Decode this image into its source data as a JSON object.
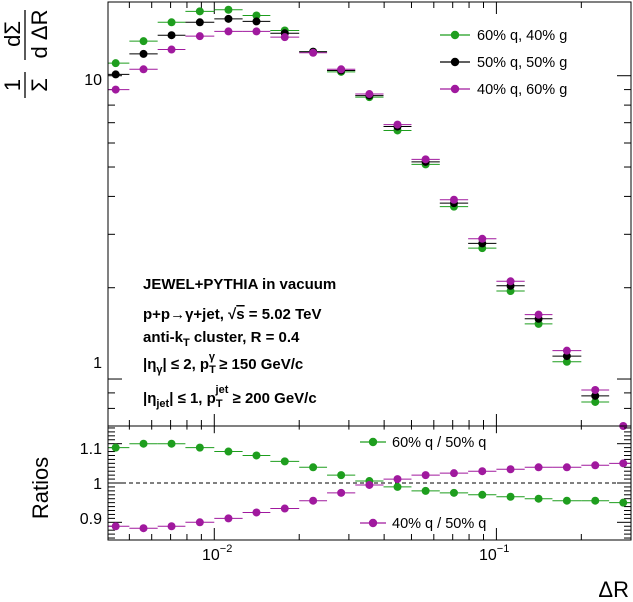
{
  "chart_data": [
    {
      "type": "scatter",
      "panel": "main",
      "x_scale": "log",
      "y_scale": "log",
      "xlim": [
        0.0042,
        0.3
      ],
      "ylim": [
        0.7,
        17.5
      ],
      "ylabel": {
        "fraction_numerator": "1",
        "fraction_denominator": "Σ",
        "deriv_numerator": "dΣ",
        "deriv_denominator": "d ΔR"
      },
      "y_ticks": [
        {
          "value": 1,
          "label": "1"
        },
        {
          "value": 10,
          "label": "10"
        }
      ],
      "x_bin_edges": [
        0.004,
        0.005,
        0.0063,
        0.0079,
        0.01,
        0.0126,
        0.0158,
        0.02,
        0.0251,
        0.0316,
        0.0398,
        0.05,
        0.063,
        0.0794,
        0.1,
        0.126,
        0.158,
        0.2,
        0.251,
        0.316
      ],
      "series": [
        {
          "name": "60% q, 40% g",
          "color": "#1e9e1e",
          "values": [
            11.0,
            13.0,
            15.0,
            16.3,
            16.5,
            15.8,
            14.1,
            12.0,
            10.3,
            8.5,
            6.6,
            5.1,
            3.7,
            2.7,
            1.95,
            1.52,
            1.14,
            0.84,
            0.64
          ]
        },
        {
          "name": "50% q, 50% g",
          "color": "#000000",
          "values": [
            10.1,
            11.8,
            13.6,
            15.0,
            15.4,
            15.1,
            13.8,
            12.0,
            10.4,
            8.6,
            6.8,
            5.2,
            3.8,
            2.8,
            2.03,
            1.58,
            1.19,
            0.88,
            0.67
          ]
        },
        {
          "name": "40% q, 60% g",
          "color": "#a0199e",
          "values": [
            9.0,
            10.5,
            12.2,
            13.5,
            14.0,
            14.0,
            13.4,
            11.9,
            10.5,
            8.7,
            6.9,
            5.3,
            3.9,
            2.9,
            2.1,
            1.63,
            1.24,
            0.92,
            0.7
          ]
        }
      ],
      "legend_position": "top-right",
      "annotations": [
        "JEWEL+PYTHIA in vacuum",
        "p+p→γ+jet, √s = 5.02 TeV",
        "anti-k_T cluster, R = 0.4",
        "|η_γ| ≤ 2, p_T^γ ≥ 150 GeV/c",
        "|η_jet| ≤ 1, p_T^jet ≥ 200 GeV/c"
      ]
    },
    {
      "type": "scatter",
      "panel": "ratio",
      "x_scale": "log",
      "xlim": [
        0.0042,
        0.3
      ],
      "ylim": [
        0.855,
        1.145
      ],
      "xlabel": "ΔR",
      "ylabel": "Ratios",
      "reference_line": 1.0,
      "y_ticks": [
        {
          "value": 0.9,
          "label": "0.9"
        },
        {
          "value": 1.0,
          "label": "1"
        },
        {
          "value": 1.1,
          "label": "1.1"
        }
      ],
      "x_ticks": [
        {
          "value": 0.01,
          "base": "10",
          "exponent": "−2"
        },
        {
          "value": 0.1,
          "base": "10",
          "exponent": "−1"
        }
      ],
      "series": [
        {
          "name": "60% q / 50% q",
          "color": "#1e9e1e",
          "values": [
            1.09,
            1.1,
            1.1,
            1.09,
            1.08,
            1.07,
            1.055,
            1.04,
            1.02,
            1.005,
            0.99,
            0.98,
            0.975,
            0.97,
            0.965,
            0.96,
            0.955,
            0.955,
            0.95
          ]
        },
        {
          "name": "40% q / 50% q",
          "color": "#a0199e",
          "values": [
            0.89,
            0.885,
            0.89,
            0.9,
            0.91,
            0.925,
            0.935,
            0.955,
            0.975,
            0.995,
            1.01,
            1.02,
            1.025,
            1.03,
            1.035,
            1.04,
            1.04,
            1.045,
            1.05
          ]
        }
      ]
    }
  ]
}
